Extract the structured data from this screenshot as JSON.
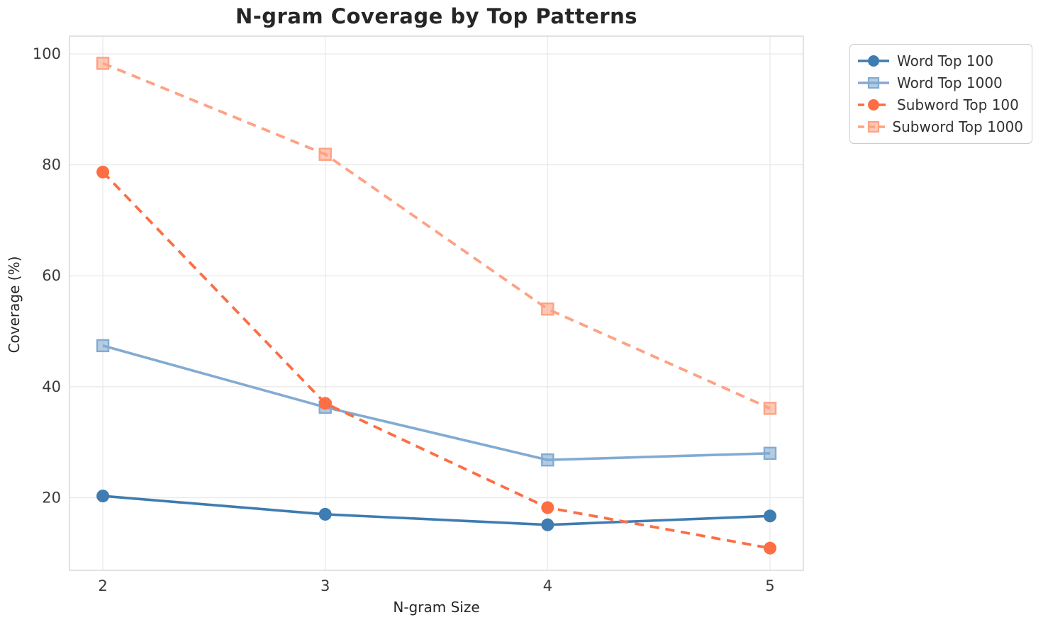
{
  "title": "N-gram Coverage by Top Patterns",
  "chart_data": {
    "type": "line",
    "title": "N-gram Coverage by Top Patterns",
    "xlabel": "N-gram Size",
    "ylabel": "Coverage (%)",
    "x": [
      2,
      3,
      4,
      5
    ],
    "xticks": [
      2,
      3,
      4,
      5
    ],
    "yticks": [
      20,
      40,
      60,
      80,
      100
    ],
    "xlim": [
      1.85,
      5.15
    ],
    "ylim": [
      6.9,
      103.2
    ],
    "grid": true,
    "legend_position": "outside-upper-right",
    "series": [
      {
        "name": "Word Top 100",
        "values": [
          20.3,
          17.0,
          15.1,
          16.7
        ],
        "color": "#3e7cb1",
        "marker": "circle",
        "linestyle": "solid"
      },
      {
        "name": "Word Top 1000",
        "values": [
          47.4,
          36.3,
          26.8,
          28.0
        ],
        "color": "#82abd2",
        "marker": "square",
        "linestyle": "solid"
      },
      {
        "name": "Subword Top 100",
        "values": [
          78.7,
          37.0,
          18.2,
          10.9
        ],
        "color": "#fc6e44",
        "marker": "circle",
        "linestyle": "dashed"
      },
      {
        "name": "Subword Top 1000",
        "values": [
          98.3,
          81.9,
          54.0,
          36.1
        ],
        "color": "#ffa183",
        "marker": "square",
        "linestyle": "dashed"
      }
    ]
  },
  "style": {
    "grid_color": "#e9e9e9",
    "spine_color": "#d9d9d9",
    "tick_label_color": "#3a3a3a",
    "text_color": "#262626",
    "background": "#ffffff"
  }
}
